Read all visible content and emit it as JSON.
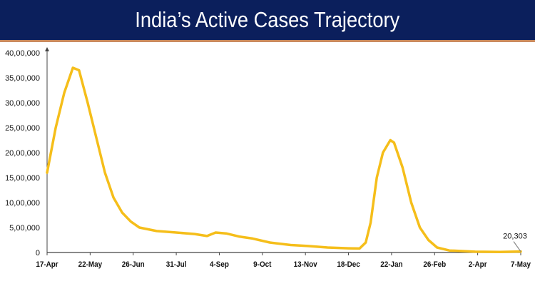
{
  "chart_data": {
    "type": "line",
    "title": "India’s Active Cases Trajectory",
    "xlabel": "",
    "ylabel": "",
    "x_tick_labels": [
      "17-Apr",
      "22-May",
      "26-Jun",
      "31-Jul",
      "4-Sep",
      "9-Oct",
      "13-Nov",
      "18-Dec",
      "22-Jan",
      "26-Feb",
      "2-Apr",
      "7-May"
    ],
    "y_tick_labels": [
      "0",
      "5,00,000",
      "10,00,000",
      "15,00,000",
      "20,00,000",
      "25,00,000",
      "30,00,000",
      "35,00,000",
      "40,00,000"
    ],
    "xlim": [
      "2021-04-17",
      "2022-05-07"
    ],
    "ylim": [
      0,
      4000000
    ],
    "grid": false,
    "line_color": "#f5be1a",
    "points": [
      [
        "2021-04-17",
        1600000
      ],
      [
        "2021-04-24",
        2500000
      ],
      [
        "2021-05-01",
        3200000
      ],
      [
        "2021-05-08",
        3700000
      ],
      [
        "2021-05-13",
        3650000
      ],
      [
        "2021-05-20",
        3000000
      ],
      [
        "2021-05-27",
        2300000
      ],
      [
        "2021-06-03",
        1600000
      ],
      [
        "2021-06-10",
        1100000
      ],
      [
        "2021-06-17",
        800000
      ],
      [
        "2021-06-24",
        620000
      ],
      [
        "2021-07-01",
        500000
      ],
      [
        "2021-07-15",
        430000
      ],
      [
        "2021-07-31",
        400000
      ],
      [
        "2021-08-15",
        370000
      ],
      [
        "2021-08-25",
        330000
      ],
      [
        "2021-09-01",
        400000
      ],
      [
        "2021-09-10",
        380000
      ],
      [
        "2021-09-20",
        320000
      ],
      [
        "2021-10-01",
        280000
      ],
      [
        "2021-10-15",
        200000
      ],
      [
        "2021-11-01",
        150000
      ],
      [
        "2021-11-15",
        130000
      ],
      [
        "2021-12-01",
        100000
      ],
      [
        "2021-12-18",
        85000
      ],
      [
        "2021-12-27",
        80000
      ],
      [
        "2022-01-01",
        200000
      ],
      [
        "2022-01-05",
        600000
      ],
      [
        "2022-01-10",
        1500000
      ],
      [
        "2022-01-15",
        2000000
      ],
      [
        "2022-01-21",
        2250000
      ],
      [
        "2022-01-24",
        2200000
      ],
      [
        "2022-01-31",
        1700000
      ],
      [
        "2022-02-07",
        1000000
      ],
      [
        "2022-02-14",
        500000
      ],
      [
        "2022-02-21",
        250000
      ],
      [
        "2022-02-28",
        100000
      ],
      [
        "2022-03-10",
        40000
      ],
      [
        "2022-03-31",
        15000
      ],
      [
        "2022-04-20",
        12000
      ],
      [
        "2022-05-07",
        20303
      ]
    ],
    "annotation": "20,303"
  }
}
